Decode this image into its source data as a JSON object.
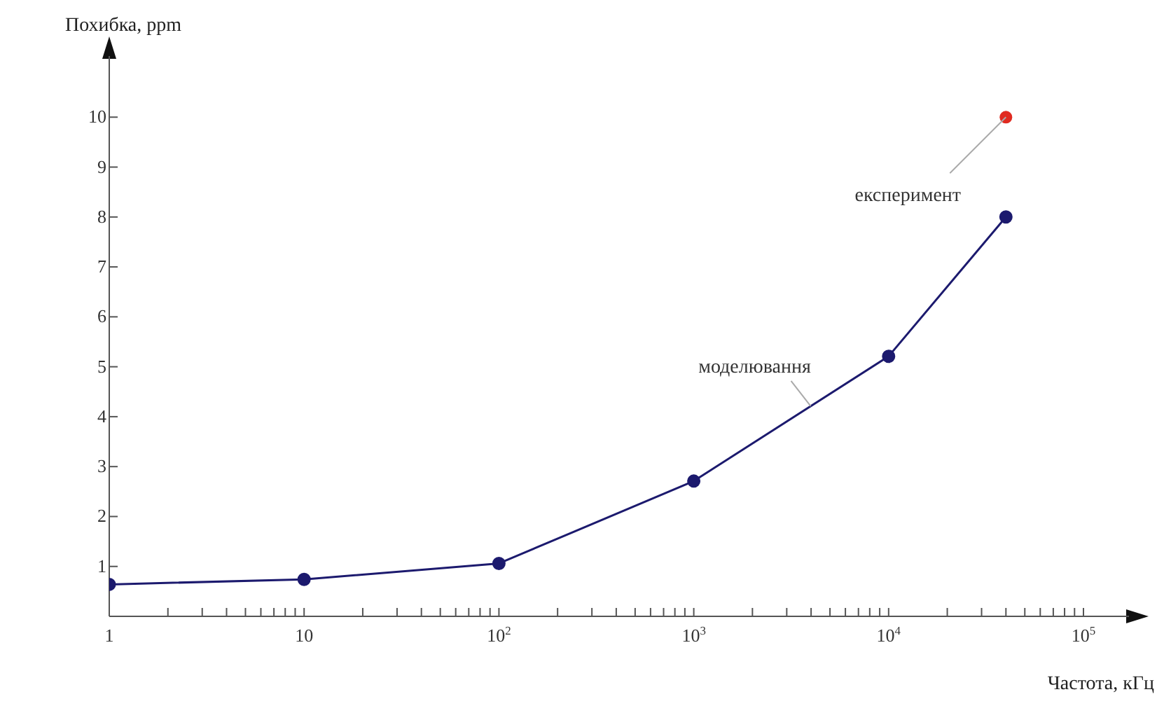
{
  "chart_data": {
    "type": "line",
    "xlabel": "Частота, кГц",
    "ylabel": "Похибка, ppm",
    "log": "x",
    "xlim": [
      1,
      150000
    ],
    "ylim": [
      0,
      11
    ],
    "xticks": [
      1,
      {
        "value": 2,
        "label": null
      },
      {
        "value": 3,
        "label": null
      },
      {
        "value": 4,
        "label": null
      },
      {
        "value": 5,
        "label": null
      },
      {
        "value": 6,
        "label": null
      },
      {
        "value": 7,
        "label": null
      },
      {
        "value": 8,
        "label": null
      },
      {
        "value": 9,
        "label": null
      },
      10,
      {
        "value": 20,
        "label": null
      },
      {
        "value": 30,
        "label": null
      },
      {
        "value": 40,
        "label": null
      },
      {
        "value": 50,
        "label": null
      },
      {
        "value": 60,
        "label": null
      },
      {
        "value": 70,
        "label": null
      },
      {
        "value": 80,
        "label": null
      },
      {
        "value": 90,
        "label": null
      },
      {
        "value": 100,
        "label": "10$^{2}$"
      },
      {
        "value": 200,
        "label": null
      },
      {
        "value": 300,
        "label": null
      },
      {
        "value": 400,
        "label": null
      },
      {
        "value": 500,
        "label": null
      },
      {
        "value": 600,
        "label": null
      },
      {
        "value": 700,
        "label": null
      },
      {
        "value": 800,
        "label": null
      },
      {
        "value": 900,
        "label": null
      },
      {
        "value": 1000,
        "label": "10$^{3}$"
      },
      {
        "value": 2000,
        "label": null
      },
      {
        "value": 3000,
        "label": null
      },
      {
        "value": 4000,
        "label": null
      },
      {
        "value": 5000,
        "label": null
      },
      {
        "value": 6000,
        "label": null
      },
      {
        "value": 7000,
        "label": null
      },
      {
        "value": 8000,
        "label": null
      },
      {
        "value": 9000,
        "label": null
      },
      {
        "value": 10000,
        "label": "10$^{4}$"
      },
      {
        "value": 20000,
        "label": null
      },
      {
        "value": 30000,
        "label": null
      },
      {
        "value": 40000,
        "label": null
      },
      {
        "value": 50000,
        "label": null
      },
      {
        "value": 60000,
        "label": null
      },
      {
        "value": 70000,
        "label": null
      },
      {
        "value": 80000,
        "label": null
      },
      {
        "value": 90000,
        "label": null
      },
      {
        "value": 100000,
        "label": "10$^{5}$"
      }
    ],
    "yticks": [
      1,
      2,
      3,
      4,
      5,
      6,
      7,
      8,
      9,
      10
    ],
    "grid": false,
    "legend": false,
    "marker": "circle",
    "line_style": "solid",
    "series": [
      {
        "name": "моделювання",
        "color": "#1c1a6e",
        "x": [
          1,
          10,
          100,
          1000,
          10000,
          40000
        ],
        "values": [
          0.64,
          0.74,
          1.06,
          2.71,
          5.21,
          8.0
        ]
      },
      {
        "name": "експеримент",
        "type": "scatter",
        "color": "#e02a20",
        "x": [
          40000
        ],
        "values": [
          10
        ]
      }
    ]
  }
}
